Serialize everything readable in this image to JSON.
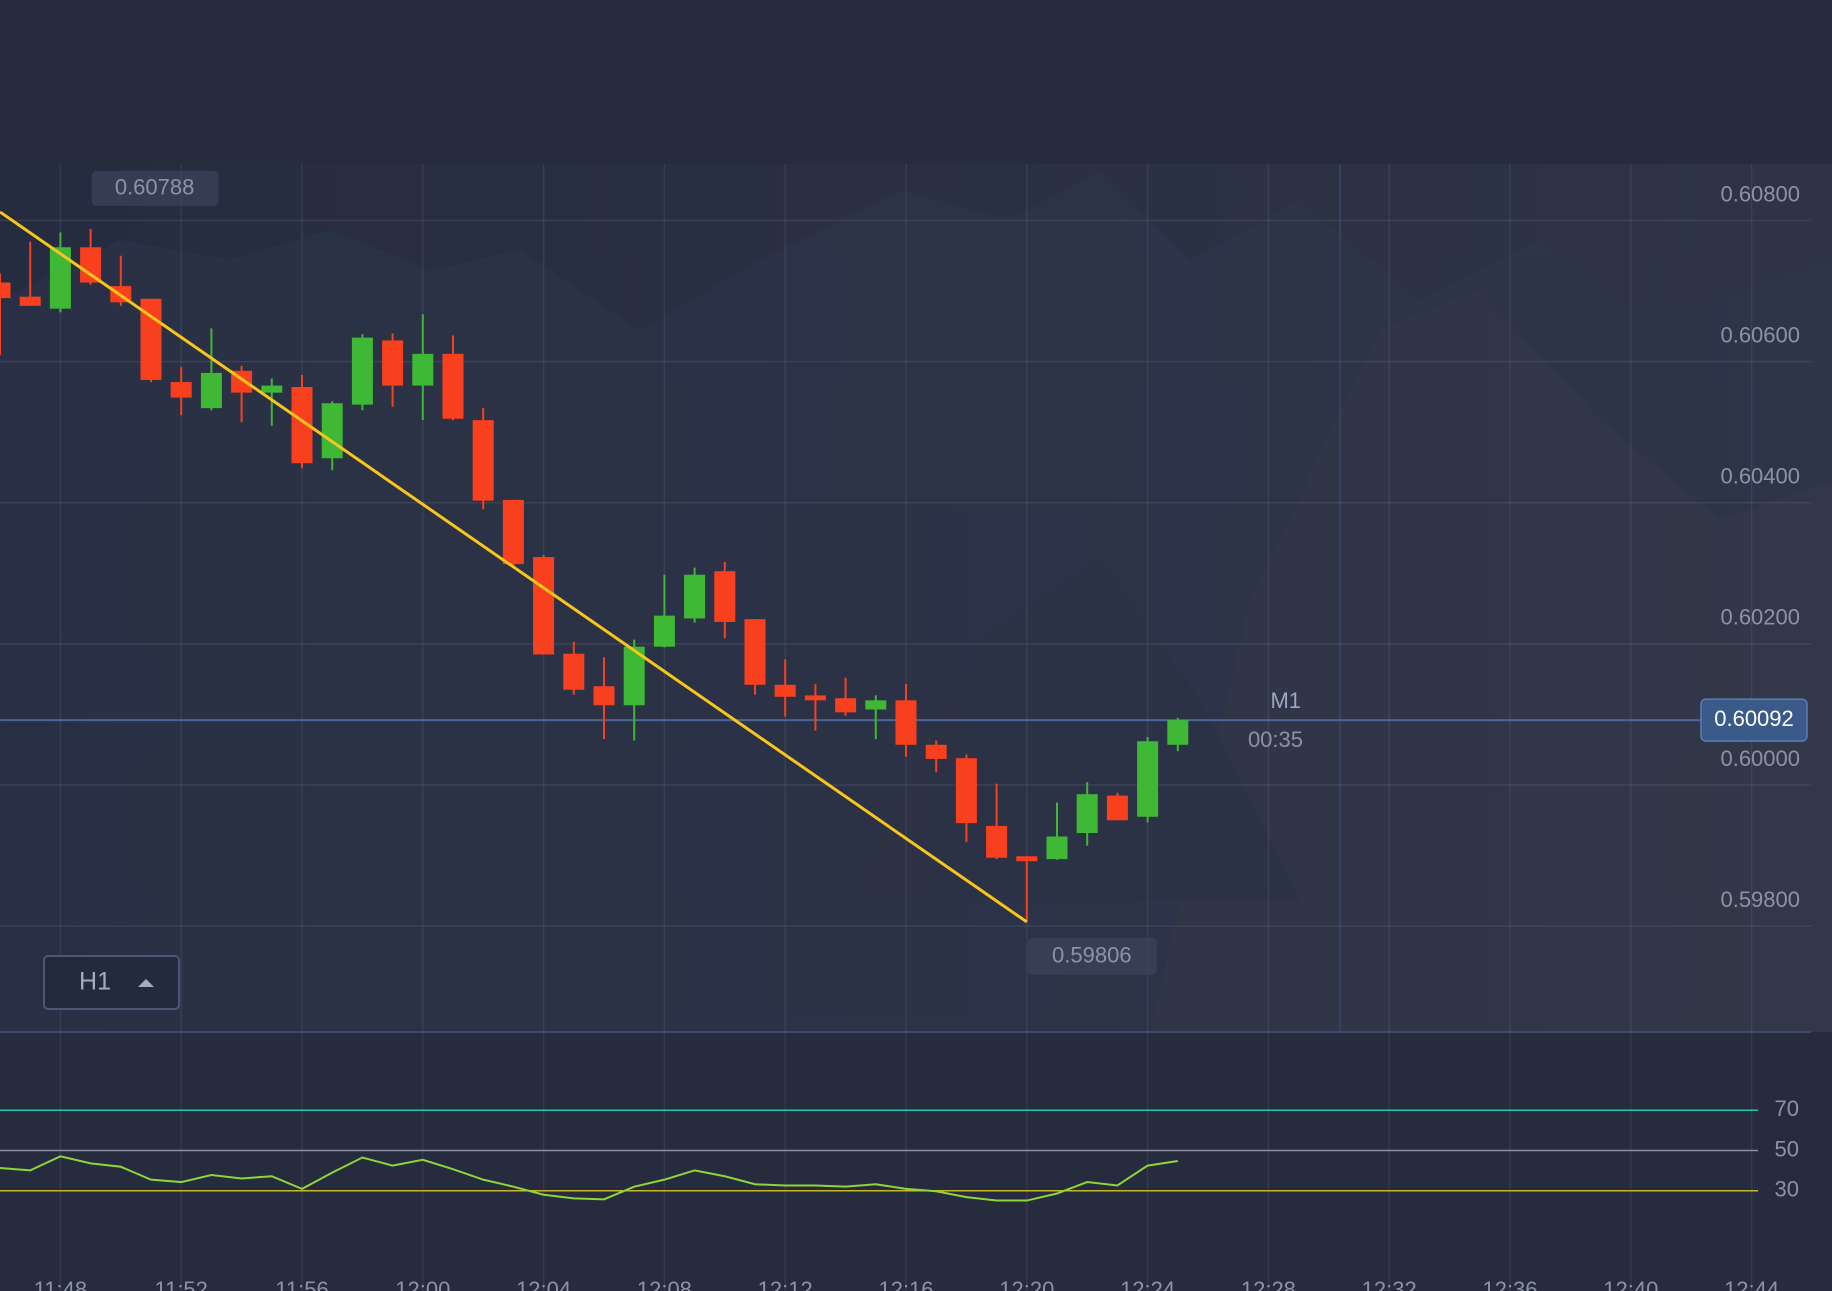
{
  "chart_data": [
    {
      "type": "candlestick",
      "categories": [
        null,
        null,
        "11:48",
        null,
        null,
        null,
        "11:52",
        null,
        null,
        null,
        "11:56",
        null,
        null,
        null,
        "12:00",
        null,
        null,
        null,
        "12:04",
        null,
        null,
        null,
        "12:08",
        null,
        null,
        null,
        "12:12",
        null,
        null,
        null,
        "12:16",
        null,
        null,
        null,
        "12:20",
        null,
        null,
        null,
        "12:24",
        null,
        null,
        null,
        "12:28",
        null,
        null,
        null,
        "12:32",
        null,
        null,
        null,
        "12:36",
        null,
        null,
        null,
        "12:40",
        null,
        null,
        null,
        "12:44"
      ],
      "open": [
        0.60712,
        0.60692,
        0.60675,
        0.60762,
        0.60707,
        0.60689,
        0.60571,
        0.60534,
        0.60587,
        0.60556,
        0.60564,
        0.60463,
        0.60539,
        0.6063,
        0.60566,
        0.60611,
        0.60517,
        0.60404,
        0.60323,
        0.60186,
        0.6014,
        0.60113,
        0.60196,
        0.60236,
        0.60303,
        0.60235,
        0.60142,
        0.60127,
        0.60123,
        0.60107,
        0.6012,
        0.60057,
        0.60038,
        0.59942,
        0.59899,
        0.59895,
        0.59932,
        0.59985,
        0.59955,
        0.60057,
        null,
        null,
        null,
        null,
        null,
        null,
        null,
        null,
        null,
        null,
        null,
        null,
        null,
        null,
        null,
        null,
        null,
        null,
        null
      ],
      "high": [
        0.60725,
        0.6077,
        0.60783,
        0.60788,
        0.6075,
        0.60689,
        0.60592,
        0.60647,
        0.60594,
        0.60576,
        0.60581,
        0.60544,
        0.60639,
        0.6064,
        0.60667,
        0.60637,
        0.60534,
        0.60404,
        0.60326,
        0.60203,
        0.60181,
        0.60206,
        0.60298,
        0.60308,
        0.60316,
        0.60235,
        0.60178,
        0.60143,
        0.60152,
        0.60127,
        0.60143,
        0.60063,
        0.60043,
        0.60002,
        0.59899,
        0.59975,
        0.60004,
        0.59989,
        0.60068,
        0.60095,
        null,
        null,
        null,
        null,
        null,
        null,
        null,
        null,
        null,
        null,
        null,
        null,
        null,
        null,
        null,
        null,
        null,
        null,
        null
      ],
      "low": [
        0.60609,
        0.60679,
        0.6067,
        0.60709,
        0.60679,
        0.60571,
        0.60524,
        0.60531,
        0.60514,
        0.60509,
        0.60449,
        0.60446,
        0.60531,
        0.60536,
        0.60517,
        0.60517,
        0.60391,
        0.60308,
        0.60185,
        0.60128,
        0.60065,
        0.60063,
        0.60195,
        0.6023,
        0.60208,
        0.60128,
        0.60097,
        0.60077,
        0.60098,
        0.60065,
        0.6004,
        0.60018,
        0.59919,
        0.59895,
        0.59806,
        0.59894,
        0.59914,
        0.5995,
        0.59947,
        0.60048,
        null,
        null,
        null,
        null,
        null,
        null,
        null,
        null,
        null,
        null,
        null,
        null,
        null,
        null,
        null,
        null,
        null,
        null,
        null
      ],
      "close": [
        0.6069,
        0.60679,
        0.60762,
        0.60712,
        0.60684,
        0.60574,
        0.60549,
        0.60584,
        0.60556,
        0.60566,
        0.60456,
        0.60541,
        0.60634,
        0.60566,
        0.60611,
        0.60519,
        0.60403,
        0.60313,
        0.60185,
        0.60135,
        0.60113,
        0.60196,
        0.6024,
        0.60298,
        0.60231,
        0.60142,
        0.60125,
        0.6012,
        0.60103,
        0.6012,
        0.60057,
        0.60037,
        0.59946,
        0.59897,
        0.59892,
        0.59927,
        0.59987,
        0.5995,
        0.60062,
        0.60092,
        null,
        null,
        null,
        null,
        null,
        null,
        null,
        null,
        null,
        null,
        null,
        null,
        null,
        null,
        null,
        null,
        null,
        null,
        null
      ],
      "up_color": "#3fb835",
      "down_color": "#f8401f",
      "ylim": [
        0.5965,
        0.6088
      ],
      "yticks": [
        {
          "value": 0.598,
          "label": "0.59800"
        },
        {
          "value": 0.6,
          "label": "0.60000"
        },
        {
          "value": 0.602,
          "label": "0.60200"
        },
        {
          "value": 0.604,
          "label": "0.60400"
        },
        {
          "value": 0.606,
          "label": "0.60600"
        },
        {
          "value": 0.608,
          "label": "0.60800"
        }
      ],
      "grid": true,
      "trendline": {
        "values": [
          0.60812,
          0.59806
        ],
        "color": "#f7c51c"
      },
      "price_line_color": "#4a6796",
      "timeframe": "M1",
      "countdown": "00:35",
      "interval": "H1"
    },
    {
      "type": "line",
      "values": [
        41.3,
        40.1,
        47.1,
        43.6,
        41.9,
        35.5,
        34.3,
        37.8,
        36.1,
        37.2,
        30.9,
        39.0,
        46.5,
        42.5,
        45.4,
        40.7,
        35.5,
        32.0,
        28.0,
        26.2,
        25.7,
        32.0,
        35.5,
        40.1,
        37.2,
        33.2,
        32.6,
        32.6,
        32.0,
        33.2,
        30.9,
        29.7,
        26.8,
        25.1,
        25.1,
        28.6,
        34.3,
        32.6,
        42.5,
        44.8,
        null,
        null,
        null,
        null,
        null,
        null,
        null,
        null,
        null,
        null,
        null,
        null,
        null,
        null,
        null,
        null,
        null,
        null,
        null
      ],
      "color": "#8fd53a",
      "ylim": [
        0,
        100
      ],
      "yticks": [
        30,
        50,
        70
      ],
      "level_colors": [
        "#c9b52a",
        "#8a8f9c",
        "#21c7b3"
      ]
    }
  ]
}
